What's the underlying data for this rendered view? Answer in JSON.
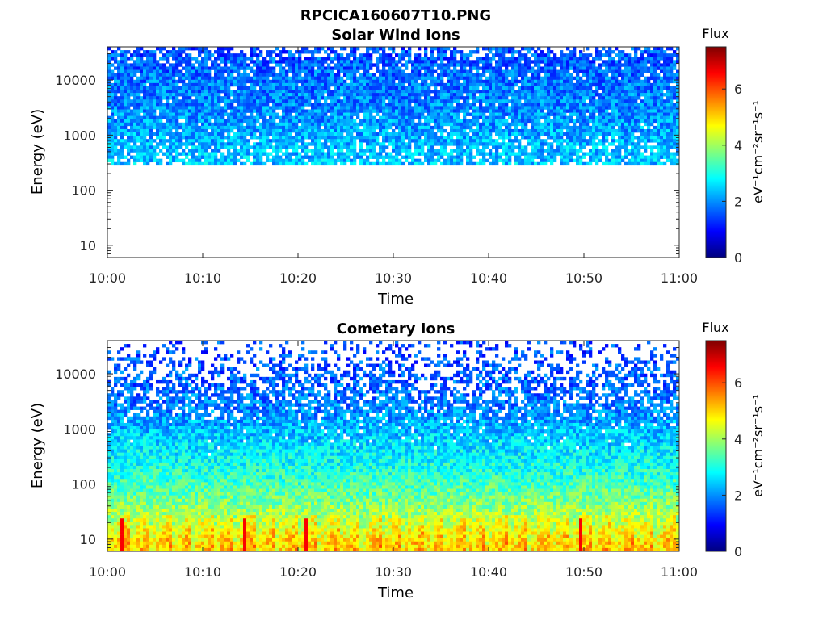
{
  "figure": {
    "title": "RPCICA160607T10.PNG"
  },
  "colorscale": [
    "#00007f",
    "#0000ff",
    "#007fff",
    "#00ffff",
    "#7fff7f",
    "#ffff00",
    "#ff7f00",
    "#ff0000",
    "#7f0000"
  ],
  "chart_data": [
    {
      "type": "heatmap",
      "title": "Solar Wind Ions",
      "xlabel": "Time",
      "ylabel": "Energy (eV)",
      "y_scale": "log",
      "xlim": [
        "10:00",
        "11:00"
      ],
      "ylim": [
        6,
        40000
      ],
      "x_ticks": [
        "10:00",
        "10:10",
        "10:20",
        "10:30",
        "10:40",
        "10:50",
        "11:00"
      ],
      "y_ticks": [
        10,
        100,
        1000,
        10000
      ],
      "y_tick_labels": [
        "10",
        "100",
        "1000",
        "10000"
      ],
      "colorbar": {
        "label": "Flux",
        "units": "eV⁻¹cm⁻²sr⁻¹s⁻¹",
        "range": [
          0,
          7.5
        ],
        "ticks": [
          0,
          2,
          4,
          6
        ]
      },
      "profile": {
        "energy_eV": [
          290,
          600,
          1500,
          4000,
          10000,
          25000,
          40000
        ],
        "mean_flux": [
          2.4,
          2.3,
          2.1,
          1.9,
          1.8,
          1.6,
          1.5
        ],
        "coverage": [
          0.8,
          0.85,
          0.92,
          0.95,
          0.93,
          0.8,
          0.45
        ]
      }
    },
    {
      "type": "heatmap",
      "title": "Cometary Ions",
      "xlabel": "Time",
      "ylabel": "Energy (eV)",
      "y_scale": "log",
      "xlim": [
        "10:00",
        "11:00"
      ],
      "ylim": [
        6,
        40000
      ],
      "x_ticks": [
        "10:00",
        "10:10",
        "10:20",
        "10:30",
        "10:40",
        "10:50",
        "11:00"
      ],
      "y_ticks": [
        10,
        100,
        1000,
        10000
      ],
      "y_tick_labels": [
        "10",
        "100",
        "1000",
        "10000"
      ],
      "colorbar": {
        "label": "Flux",
        "units": "eV⁻¹cm⁻²sr⁻¹s⁻¹",
        "range": [
          0,
          7.5
        ],
        "ticks": [
          0,
          2,
          4,
          6
        ]
      },
      "profile": {
        "energy_eV": [
          6,
          10,
          20,
          50,
          100,
          300,
          1000,
          3000,
          10000,
          20000,
          40000
        ],
        "mean_flux": [
          5.0,
          4.8,
          4.3,
          3.7,
          3.3,
          2.8,
          2.3,
          1.8,
          1.6,
          1.5,
          1.4
        ],
        "coverage": [
          1.0,
          1.0,
          1.0,
          1.0,
          1.0,
          1.0,
          0.95,
          0.75,
          0.45,
          0.3,
          0.18
        ]
      },
      "hot_spots_minutes": [
        1.5,
        14.5,
        21,
        49.5
      ]
    }
  ]
}
